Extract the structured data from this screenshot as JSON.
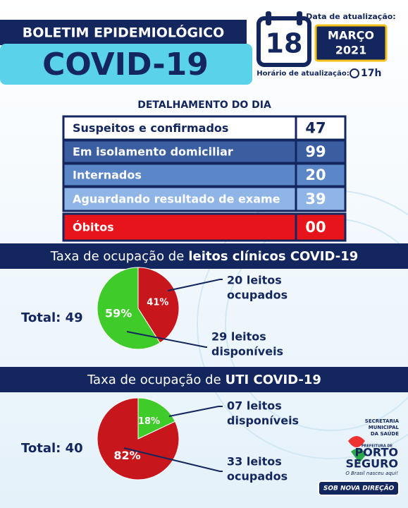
{
  "header": {
    "title": "BOLETIM EPIDEMIOLÓGICO",
    "subtitle": "COVID-19",
    "day": "18",
    "date_label": "Data de atualização:",
    "month": "MARÇO",
    "year": "2021",
    "time_label": "Horário de atualização:",
    "time": "17h"
  },
  "table": {
    "title": "DETALHAMENTO DO DIA",
    "rows": [
      [
        "Suspeitos e confirmados",
        "47"
      ],
      [
        "Em isolamento domiciliar",
        "99"
      ],
      [
        "Internados",
        "20"
      ],
      [
        "Aguardando resultado de exame",
        "39"
      ],
      [
        "Óbitos",
        "00"
      ]
    ]
  },
  "chart_data": [
    {
      "type": "pie",
      "title": "Taxa de ocupação de",
      "title_bold": "leitos clínicos COVID-19",
      "total": "Total: 49",
      "values": [
        41,
        59
      ],
      "value_labels": [
        "41%",
        "59%"
      ],
      "colors": [
        "#c8161d",
        "#3fcc2a"
      ],
      "annotations": [
        [
          "20 leitos",
          "ocupados"
        ],
        [
          "29 leitos",
          "disponíveis"
        ]
      ]
    },
    {
      "type": "pie",
      "title": "Taxa de ocupação de",
      "title_bold": "UTI COVID-19",
      "total": "Total: 40",
      "values": [
        18,
        82
      ],
      "value_labels": [
        "18%",
        "82%"
      ],
      "colors": [
        "#3fcc2a",
        "#c8161d"
      ],
      "annotations": [
        [
          "07 leitos",
          "disponíveis"
        ],
        [
          "33 leitos",
          "ocupados"
        ]
      ]
    }
  ],
  "footer": {
    "secretaria": [
      "SECRETARIA",
      "MUNICIPAL",
      "DA SAÚDE"
    ],
    "prefeitura": "PREFEITURA DE",
    "city": [
      "PORTO",
      "SEGURO"
    ],
    "slogan": "O Brasil nasceu aqui!",
    "badge": "SOB NOVA DIREÇÃO"
  }
}
